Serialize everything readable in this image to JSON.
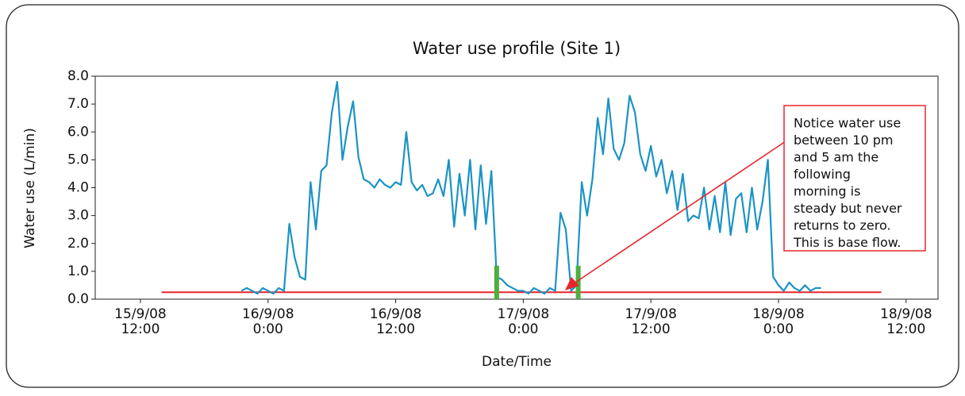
{
  "chart_data": {
    "type": "line",
    "title": "Water use profile (Site 1)",
    "x_label": "Date/Time",
    "y_label": "Water use (L/min)",
    "xlim": [
      "2008-09-15T07:45",
      "2008-09-18T15:00"
    ],
    "xticks": [
      {
        "value": "2008-09-15T12:00",
        "label": "15/9/08\n12:00"
      },
      {
        "value": "2008-09-16T00:00",
        "label": "16/9/08\n0:00"
      },
      {
        "value": "2008-09-16T12:00",
        "label": "16/9/08\n12:00"
      },
      {
        "value": "2008-09-17T00:00",
        "label": "17/9/08\n0:00"
      },
      {
        "value": "2008-09-17T12:00",
        "label": "17/9/08\n12:00"
      },
      {
        "value": "2008-09-18T00:00",
        "label": "18/9/08\n0:00"
      },
      {
        "value": "2008-09-18T12:00",
        "label": "18/9/08\n12:00"
      }
    ],
    "ylim": [
      0,
      8
    ],
    "yticks": [
      {
        "value": 0,
        "label": "0.0"
      },
      {
        "value": 1,
        "label": "1.0"
      },
      {
        "value": 2,
        "label": "2.0"
      },
      {
        "value": 3,
        "label": "3.0"
      },
      {
        "value": 4,
        "label": "4.0"
      },
      {
        "value": 5,
        "label": "5.0"
      },
      {
        "value": 6,
        "label": "6.0"
      },
      {
        "value": 7,
        "label": "7.0"
      },
      {
        "value": 8,
        "label": "8.0"
      }
    ],
    "x": [
      "2008-09-15T21:30",
      "2008-09-15T22:00",
      "2008-09-15T22:30",
      "2008-09-15T23:00",
      "2008-09-15T23:30",
      "2008-09-16T00:00",
      "2008-09-16T00:30",
      "2008-09-16T01:00",
      "2008-09-16T01:30",
      "2008-09-16T02:00",
      "2008-09-16T02:30",
      "2008-09-16T03:00",
      "2008-09-16T03:30",
      "2008-09-16T04:00",
      "2008-09-16T04:30",
      "2008-09-16T05:00",
      "2008-09-16T05:30",
      "2008-09-16T06:00",
      "2008-09-16T06:30",
      "2008-09-16T07:00",
      "2008-09-16T07:30",
      "2008-09-16T08:00",
      "2008-09-16T08:30",
      "2008-09-16T09:00",
      "2008-09-16T09:30",
      "2008-09-16T10:00",
      "2008-09-16T10:30",
      "2008-09-16T11:00",
      "2008-09-16T11:30",
      "2008-09-16T12:00",
      "2008-09-16T12:30",
      "2008-09-16T13:00",
      "2008-09-16T13:30",
      "2008-09-16T14:00",
      "2008-09-16T14:30",
      "2008-09-16T15:00",
      "2008-09-16T15:30",
      "2008-09-16T16:00",
      "2008-09-16T16:30",
      "2008-09-16T17:00",
      "2008-09-16T17:30",
      "2008-09-16T18:00",
      "2008-09-16T18:30",
      "2008-09-16T19:00",
      "2008-09-16T19:30",
      "2008-09-16T20:00",
      "2008-09-16T20:30",
      "2008-09-16T21:00",
      "2008-09-16T21:30",
      "2008-09-16T22:00",
      "2008-09-16T22:30",
      "2008-09-16T23:00",
      "2008-09-16T23:30",
      "2008-09-17T00:00",
      "2008-09-17T00:30",
      "2008-09-17T01:00",
      "2008-09-17T01:30",
      "2008-09-17T02:00",
      "2008-09-17T02:30",
      "2008-09-17T03:00",
      "2008-09-17T03:30",
      "2008-09-17T04:00",
      "2008-09-17T04:30",
      "2008-09-17T05:00",
      "2008-09-17T05:30",
      "2008-09-17T06:00",
      "2008-09-17T06:30",
      "2008-09-17T07:00",
      "2008-09-17T07:30",
      "2008-09-17T08:00",
      "2008-09-17T08:30",
      "2008-09-17T09:00",
      "2008-09-17T09:30",
      "2008-09-17T10:00",
      "2008-09-17T10:30",
      "2008-09-17T11:00",
      "2008-09-17T11:30",
      "2008-09-17T12:00",
      "2008-09-17T12:30",
      "2008-09-17T13:00",
      "2008-09-17T13:30",
      "2008-09-17T14:00",
      "2008-09-17T14:30",
      "2008-09-17T15:00",
      "2008-09-17T15:30",
      "2008-09-17T16:00",
      "2008-09-17T16:30",
      "2008-09-17T17:00",
      "2008-09-17T17:30",
      "2008-09-17T18:00",
      "2008-09-17T18:30",
      "2008-09-17T19:00",
      "2008-09-17T19:30",
      "2008-09-17T20:00",
      "2008-09-17T20:30",
      "2008-09-17T21:00",
      "2008-09-17T21:30",
      "2008-09-17T22:00",
      "2008-09-17T22:30",
      "2008-09-17T23:00",
      "2008-09-17T23:30",
      "2008-09-18T00:00",
      "2008-09-18T00:30",
      "2008-09-18T01:00",
      "2008-09-18T01:30",
      "2008-09-18T02:00",
      "2008-09-18T02:30",
      "2008-09-18T03:00",
      "2008-09-18T03:30",
      "2008-09-18T04:00"
    ],
    "series": [
      {
        "color": "#1b93c6",
        "values": [
          0.3,
          0.4,
          0.3,
          0.2,
          0.4,
          0.3,
          0.2,
          0.4,
          0.3,
          2.7,
          1.5,
          0.8,
          0.7,
          4.2,
          2.5,
          4.6,
          4.8,
          6.7,
          7.8,
          5.0,
          6.2,
          7.1,
          5.1,
          4.3,
          4.2,
          4.0,
          4.3,
          4.1,
          4.0,
          4.2,
          4.1,
          6.0,
          4.2,
          3.9,
          4.1,
          3.7,
          3.8,
          4.3,
          3.7,
          5.0,
          2.6,
          4.5,
          3.0,
          5.0,
          2.5,
          4.8,
          2.7,
          4.6,
          0.8,
          0.7,
          0.5,
          0.4,
          0.3,
          0.3,
          0.2,
          0.4,
          0.3,
          0.2,
          0.4,
          0.3,
          3.1,
          2.5,
          0.3,
          0.5,
          4.2,
          3.0,
          4.3,
          6.5,
          5.2,
          7.2,
          5.4,
          5.0,
          5.6,
          7.3,
          6.7,
          5.2,
          4.6,
          5.5,
          4.4,
          5.0,
          3.8,
          4.6,
          3.2,
          4.5,
          2.8,
          3.0,
          2.9,
          4.0,
          2.5,
          3.7,
          2.4,
          4.2,
          2.3,
          3.6,
          3.8,
          2.4,
          4.0,
          2.5,
          3.5,
          5.0,
          0.8,
          0.5,
          0.3,
          0.6,
          0.4,
          0.3,
          0.5,
          0.3,
          0.4,
          0.4
        ]
      }
    ],
    "base_flow_line": {
      "value": 0.25,
      "x": [
        "2008-09-15T14:00",
        "2008-09-18T09:40"
      ],
      "color": "#e8262c"
    },
    "highlights": [
      {
        "x": "2008-09-16T21:30",
        "value": 1.2,
        "color": "#4caf3f"
      },
      {
        "x": "2008-09-17T05:10",
        "value": 1.2,
        "color": "#4caf3f"
      }
    ],
    "annotation": {
      "lines": [
        "Notice water use",
        "between 10 pm",
        "and 5 am the",
        "following",
        "morning is",
        "steady but never",
        "returns to zero.",
        "This is base flow."
      ]
    }
  }
}
